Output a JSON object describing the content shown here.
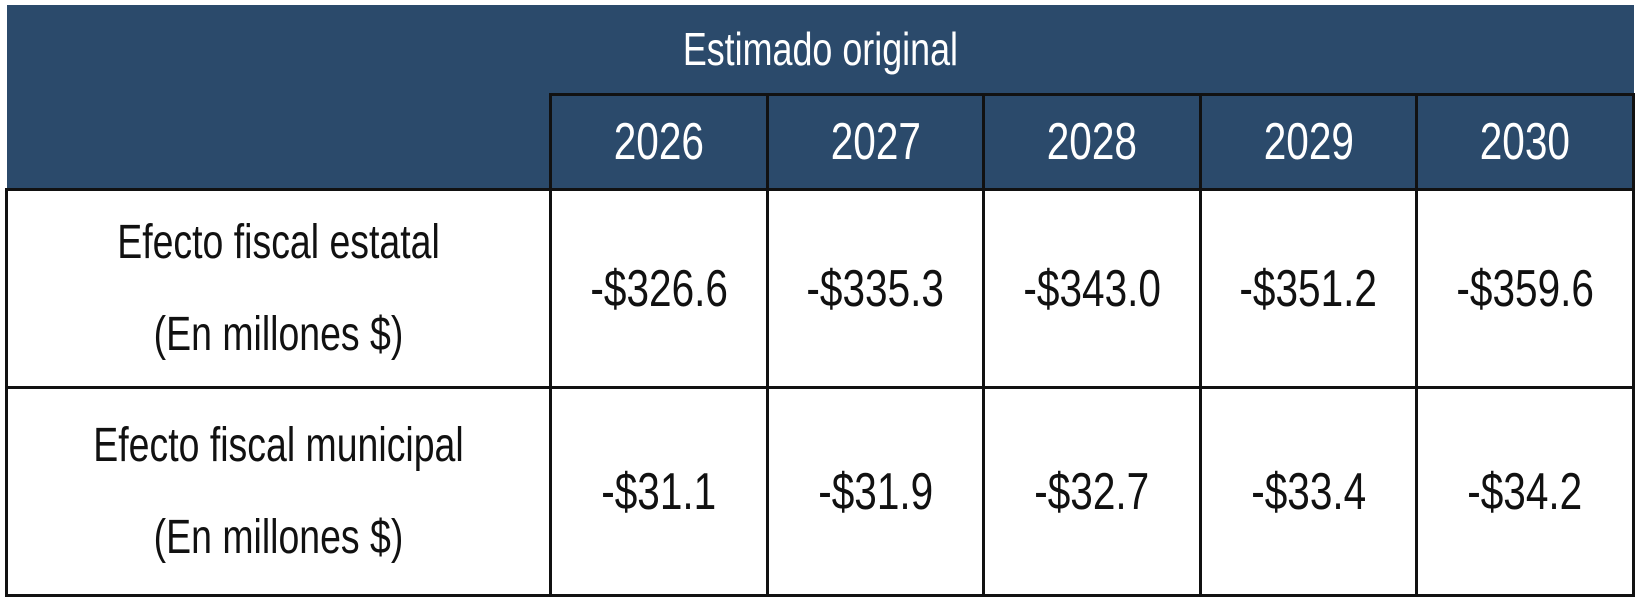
{
  "header": {
    "title": "Estimado original"
  },
  "table": {
    "columns": [
      "2026",
      "2027",
      "2028",
      "2029",
      "2030"
    ],
    "rows": [
      {
        "label": [
          "Efecto fiscal estatal",
          "(En millones $)"
        ],
        "values": [
          "-$326.6",
          "-$335.3",
          "-$343.0",
          "-$351.2",
          "-$359.6"
        ]
      },
      {
        "label": [
          "Efecto fiscal municipal",
          "(En millones $)"
        ],
        "values": [
          "-$31.1",
          "-$31.9",
          "-$32.7",
          "-$33.4",
          "-$34.2"
        ]
      }
    ]
  }
}
